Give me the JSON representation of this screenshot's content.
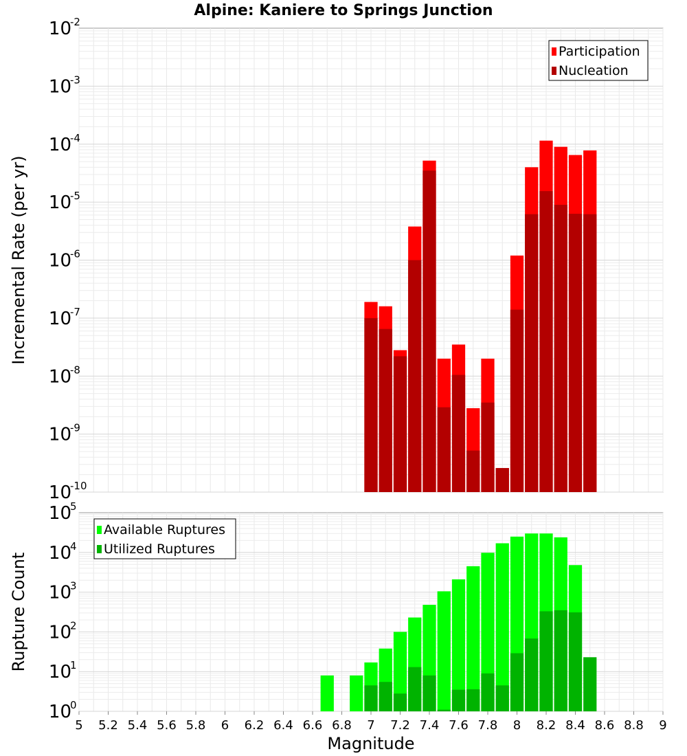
{
  "title": "Alpine: Kaniere to Springs Junction",
  "chart_data": [
    {
      "type": "bar",
      "ylabel": "Incremental Rate (per yr)",
      "yscale": "log",
      "ylim": [
        1e-10,
        0.01
      ],
      "xlim": [
        5,
        9
      ],
      "grid": true,
      "legend_position": "top-right",
      "y_ticks": [
        {
          "base": "10",
          "exp": "-10"
        },
        {
          "base": "10",
          "exp": "-9"
        },
        {
          "base": "10",
          "exp": "-8"
        },
        {
          "base": "10",
          "exp": "-7"
        },
        {
          "base": "10",
          "exp": "-6"
        },
        {
          "base": "10",
          "exp": "-5"
        },
        {
          "base": "10",
          "exp": "-4"
        },
        {
          "base": "10",
          "exp": "-3"
        },
        {
          "base": "10",
          "exp": "-2"
        }
      ],
      "x": [
        7.0,
        7.1,
        7.2,
        7.3,
        7.4,
        7.5,
        7.6,
        7.7,
        7.8,
        7.9,
        8.0,
        8.1,
        8.2,
        8.3,
        8.4,
        8.5
      ],
      "series": [
        {
          "name": "Participation",
          "color": "#ff0000",
          "values": [
            1.9e-07,
            1.6e-07,
            2.8e-08,
            3.8e-06,
            5.2e-05,
            2e-08,
            3.5e-08,
            2.8e-09,
            2e-08,
            2.6e-10,
            1.2e-06,
            4e-05,
            0.000115,
            9e-05,
            6.5e-05,
            7.8e-05
          ]
        },
        {
          "name": "Nucleation",
          "color": "#b30000",
          "values": [
            1e-07,
            6.5e-08,
            2.2e-08,
            1e-06,
            3.5e-05,
            2.9e-09,
            1.05e-08,
            5.2e-10,
            3.5e-09,
            2.6e-10,
            1.4e-07,
            6.2e-06,
            1.55e-05,
            9e-06,
            6.3e-06,
            6.2e-06
          ]
        }
      ]
    },
    {
      "type": "bar",
      "xlabel": "Magnitude",
      "ylabel": "Rupture Count",
      "yscale": "log",
      "ylim": [
        1,
        100000
      ],
      "xlim": [
        5,
        9
      ],
      "grid": true,
      "legend_position": "top-left",
      "x_ticks": [
        "5",
        "5.2",
        "5.4",
        "5.6",
        "5.8",
        "6",
        "6.2",
        "6.4",
        "6.6",
        "6.8",
        "7",
        "7.2",
        "7.4",
        "7.6",
        "7.8",
        "8",
        "8.2",
        "8.4",
        "8.6",
        "8.8",
        "9"
      ],
      "y_ticks": [
        {
          "base": "10",
          "exp": "0"
        },
        {
          "base": "10",
          "exp": "1"
        },
        {
          "base": "10",
          "exp": "2"
        },
        {
          "base": "10",
          "exp": "3"
        },
        {
          "base": "10",
          "exp": "4"
        },
        {
          "base": "10",
          "exp": "5"
        }
      ],
      "x": [
        6.7,
        6.9,
        7.0,
        7.1,
        7.2,
        7.3,
        7.4,
        7.5,
        7.6,
        7.7,
        7.8,
        7.9,
        8.0,
        8.1,
        8.2,
        8.3,
        8.4,
        8.5
      ],
      "series": [
        {
          "name": "Available Ruptures",
          "color": "#00ff00",
          "values": [
            8,
            8,
            17,
            38,
            100,
            230,
            480,
            1050,
            2100,
            4500,
            9800,
            17000,
            25000,
            30000,
            30000,
            24000,
            4800,
            0
          ]
        },
        {
          "name": "Utilized Ruptures",
          "color": "#00b300",
          "values": [
            0,
            0,
            4.5,
            5.5,
            2.8,
            13,
            8,
            1.1,
            3.5,
            3.6,
            9,
            4.5,
            29,
            68,
            330,
            350,
            310,
            23
          ]
        }
      ]
    }
  ]
}
